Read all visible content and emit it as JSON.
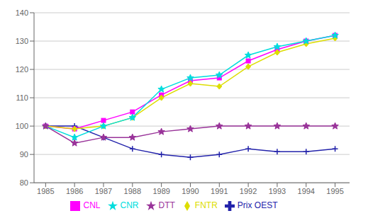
{
  "chart_data": {
    "type": "line",
    "x": [
      1985,
      1986,
      1987,
      1988,
      1989,
      1990,
      1991,
      1992,
      1993,
      1994,
      1995
    ],
    "xlim": [
      1984.6,
      1995.5
    ],
    "xticks": [
      1985,
      1986,
      1987,
      1988,
      1989,
      1990,
      1991,
      1992,
      1993,
      1994,
      1995
    ],
    "ylim": [
      80,
      140
    ],
    "yticks": [
      80,
      90,
      100,
      110,
      120,
      130,
      140
    ],
    "grid": true,
    "legend": "bottom",
    "series": [
      {
        "name": "Prix OEST",
        "color": "#2222AA",
        "marker": "plus",
        "values": [
          100,
          100,
          96,
          92,
          90,
          89,
          90,
          92,
          91,
          91,
          92
        ]
      },
      {
        "name": "CNL",
        "color": "#FF00FF",
        "marker": "square",
        "values": [
          100,
          99,
          102,
          105,
          111,
          116,
          117,
          123,
          127,
          130,
          132
        ]
      },
      {
        "name": "FNTR",
        "color": "#DDDD00",
        "marker": "diamond",
        "values": [
          100,
          99,
          100,
          103,
          110,
          115,
          114,
          121,
          126,
          129,
          131
        ]
      },
      {
        "name": "CNR",
        "color": "#00DDDD",
        "marker": "star",
        "values": [
          100,
          96,
          100,
          103,
          113,
          117,
          118,
          125,
          128,
          130,
          132
        ]
      },
      {
        "name": "DTT",
        "color": "#993399",
        "marker": "star",
        "values": [
          100,
          94,
          96,
          96,
          98,
          99,
          100,
          100,
          100,
          100,
          100
        ]
      }
    ]
  }
}
